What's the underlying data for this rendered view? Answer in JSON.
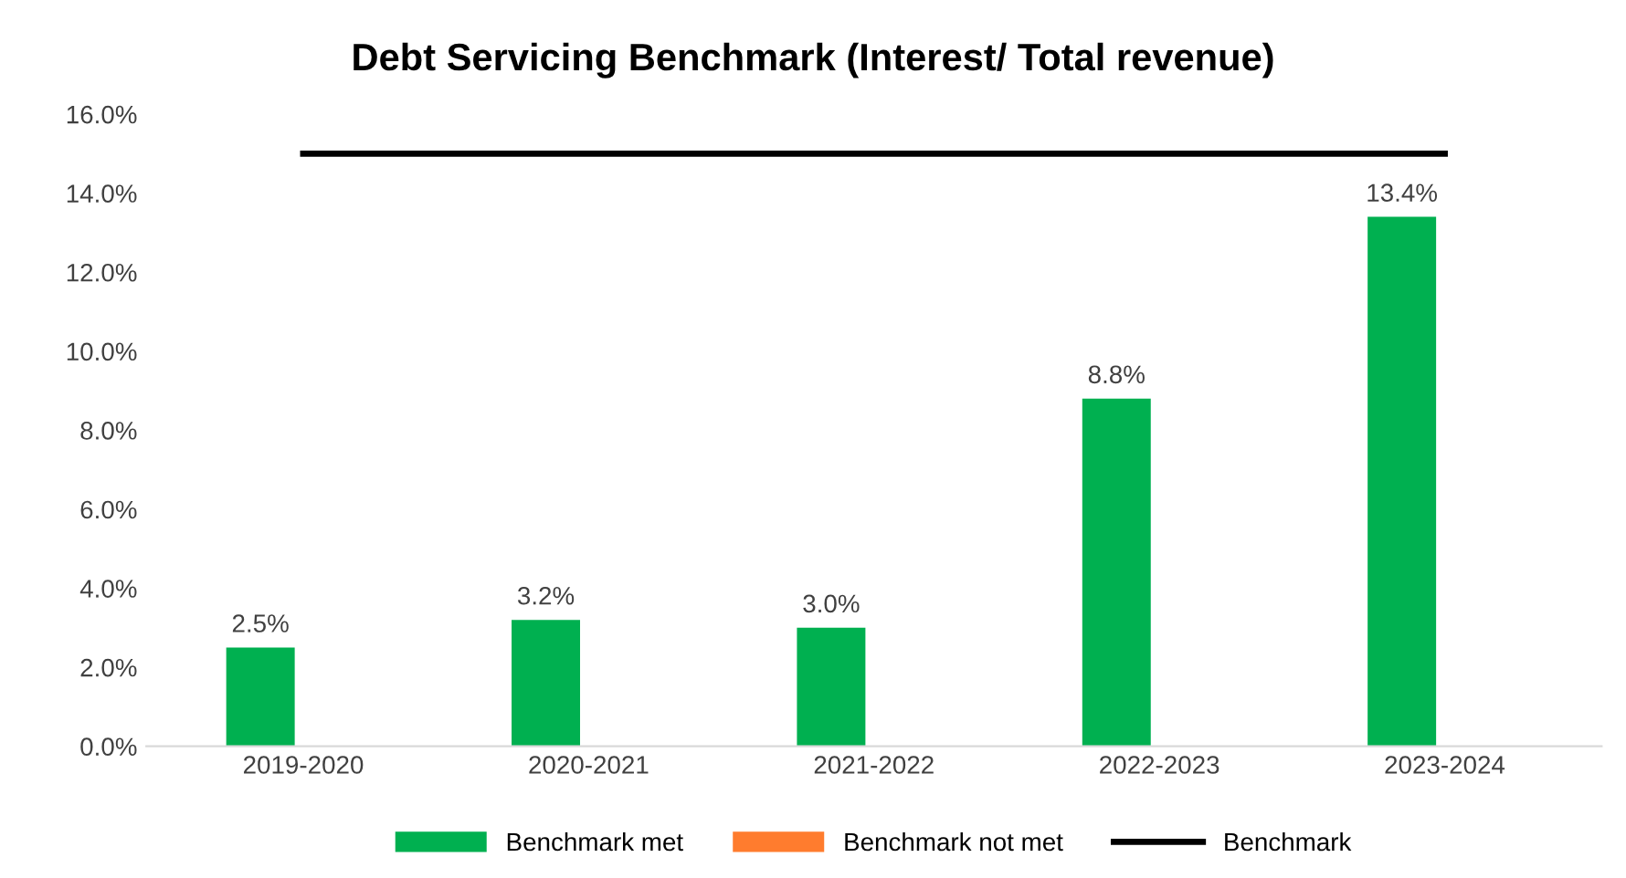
{
  "chart_data": {
    "type": "bar",
    "title": "Debt Servicing Benchmark (Interest/ Total revenue)",
    "categories": [
      "2019-2020",
      "2020-2021",
      "2021-2022",
      "2022-2023",
      "2023-2024"
    ],
    "series": [
      {
        "name": "Benchmark met",
        "color": "#00b050",
        "values": [
          2.5,
          3.2,
          3.0,
          8.8,
          13.4
        ],
        "value_labels": [
          "2.5%",
          "3.2%",
          "3.0%",
          "8.8%",
          "13.4%"
        ]
      },
      {
        "name": "Benchmark not met",
        "color": "#ff7c2e",
        "values": [
          0,
          0,
          0,
          0,
          0
        ]
      },
      {
        "name": "Benchmark",
        "type": "line",
        "color": "#000000",
        "values": [
          15,
          15,
          15,
          15,
          15
        ]
      }
    ],
    "ylim": [
      0,
      16
    ],
    "yticks": [
      {
        "value": 0,
        "label": "0.0%"
      },
      {
        "value": 2,
        "label": "2.0%"
      },
      {
        "value": 4,
        "label": "4.0%"
      },
      {
        "value": 6,
        "label": "6.0%"
      },
      {
        "value": 8,
        "label": "8.0%"
      },
      {
        "value": 10,
        "label": "10.0%"
      },
      {
        "value": 12,
        "label": "12.0%"
      },
      {
        "value": 14,
        "label": "14.0%"
      },
      {
        "value": 16,
        "label": "16.0%"
      }
    ],
    "grid": false,
    "legend": "bottom"
  }
}
